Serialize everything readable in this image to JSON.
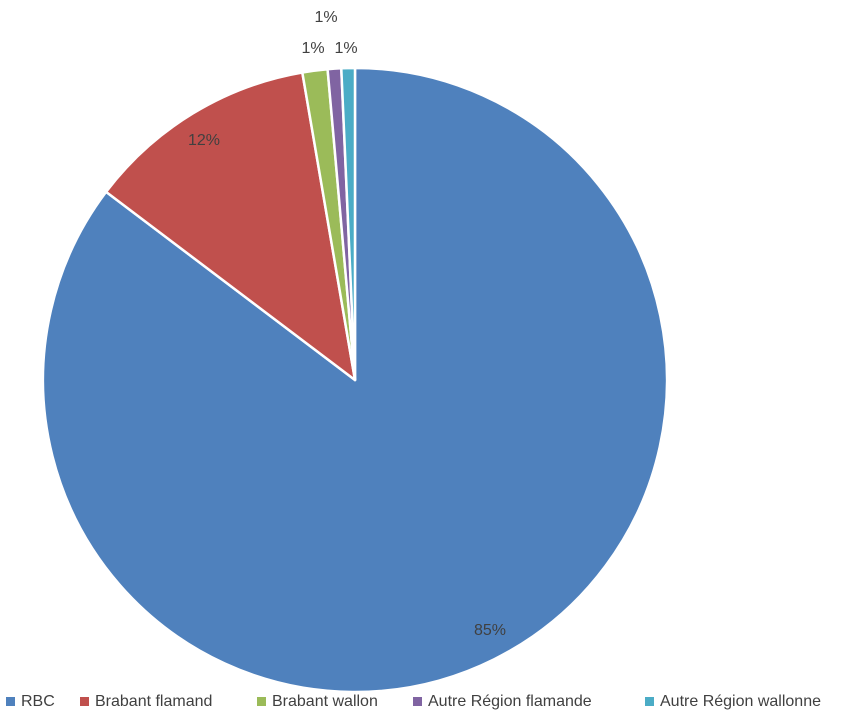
{
  "chart_data": {
    "type": "pie",
    "categories": [
      "RBC",
      "Brabant flamand",
      "Brabant wallon",
      "Autre Région flamande",
      "Autre Région wallonne"
    ],
    "values": [
      85.3,
      12.0,
      1.3,
      0.7,
      0.7
    ],
    "data_labels": [
      "85%",
      "12%",
      "1%",
      "1%",
      "1%"
    ],
    "colors": [
      "#4F81BD",
      "#C0504D",
      "#9BBB59",
      "#8064A2",
      "#4BACC6"
    ],
    "start_angle_deg": 0,
    "direction": "clockwise",
    "slice_border_color": "#ffffff",
    "label_color": "#404040",
    "legend_position": "bottom"
  }
}
